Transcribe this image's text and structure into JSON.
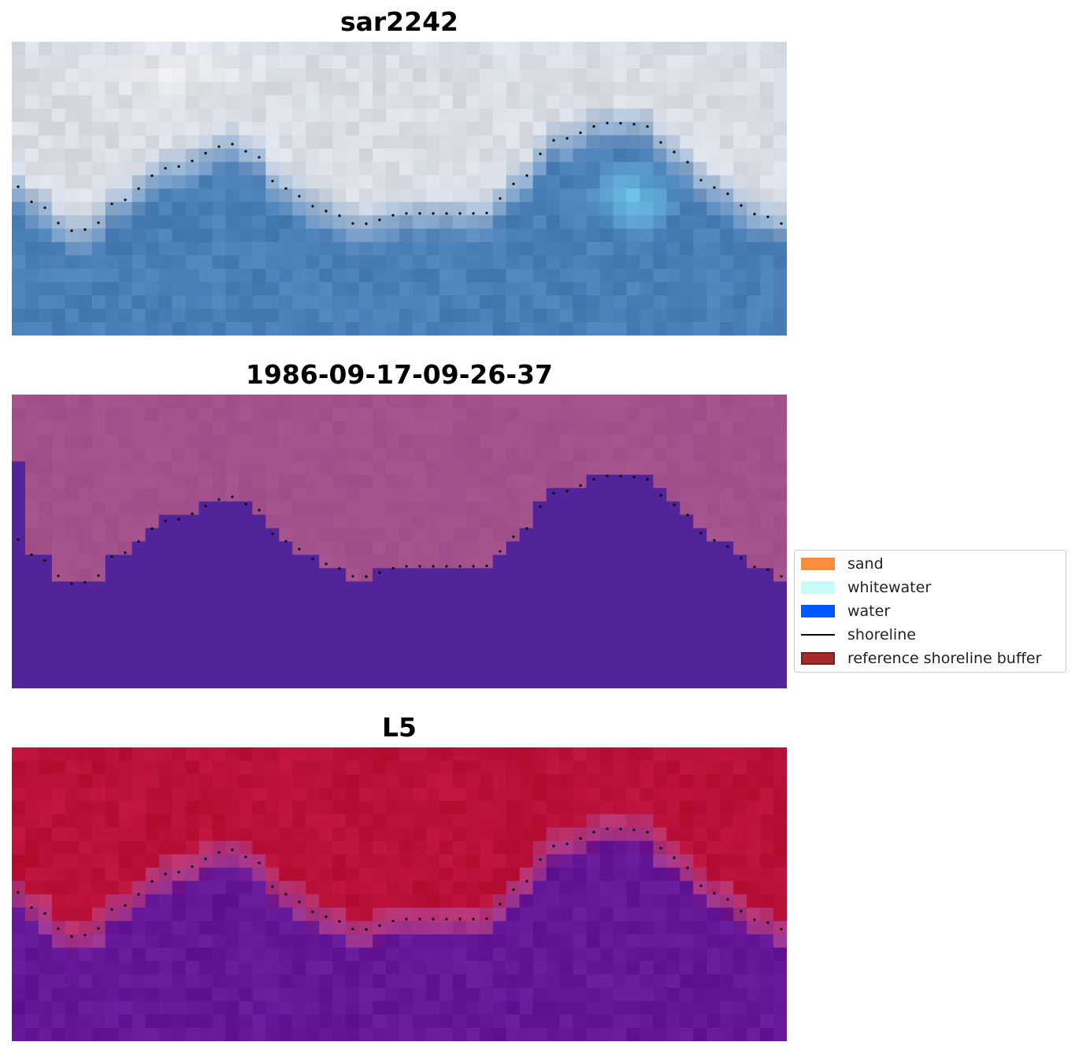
{
  "panels": [
    {
      "title": "sar2242",
      "palette": "sar"
    },
    {
      "title": "1986-09-17-09-26-37",
      "palette": "class"
    },
    {
      "title": "L5",
      "palette": "mndwi"
    }
  ],
  "legend": {
    "items": [
      {
        "label": "sand",
        "kind": "patch",
        "color": "#ff8c3a"
      },
      {
        "label": "whitewater",
        "kind": "patch",
        "color": "#c9fbfb"
      },
      {
        "label": "water",
        "kind": "patch",
        "color": "#0057ff"
      },
      {
        "label": "shoreline",
        "kind": "line",
        "color": "#000000"
      },
      {
        "label": "reference shoreline buffer",
        "kind": "patch",
        "color": "#a52a2a",
        "edge": "#7a1c1c"
      }
    ]
  },
  "colors": {
    "sar_sky": "#d8dde6",
    "sar_water": "#4a7fb8",
    "sar_whitewater": "#6fcdee",
    "class_land": "#a8548f",
    "class_water": "#52249a",
    "mndwi_land": "#c1163f",
    "mndwi_water": "#6c1ea0",
    "shoreline_dots": "#000000"
  }
}
